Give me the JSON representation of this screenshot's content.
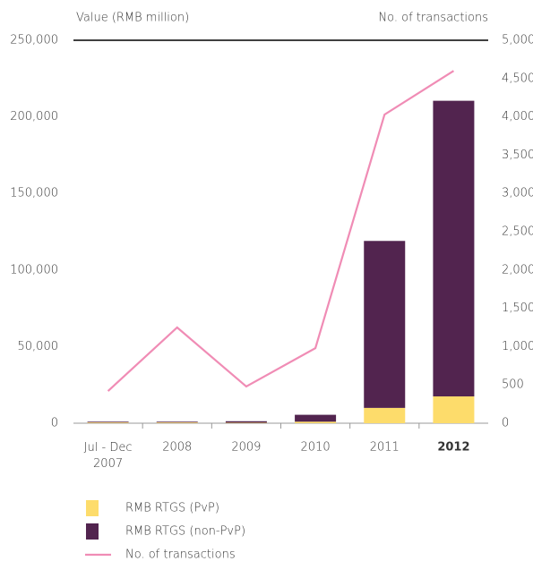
{
  "chart_data": {
    "type": "bar_line",
    "y_label": "Value (RMB million)",
    "y2_label": "No. of transactions",
    "categories": [
      "Jul - Dec\n2007",
      "2008",
      "2009",
      "2010",
      "2011",
      "2012"
    ],
    "series": [
      {
        "name": "RMB RTGS (PvP)",
        "color": "#fddc6b",
        "type": "bar",
        "values": [
          500,
          500,
          300,
          1000,
          10000,
          17500
        ]
      },
      {
        "name": "RMB RTGS (non-PvP)",
        "color": "#52244f",
        "type": "bar",
        "values": [
          500,
          500,
          1000,
          4500,
          109000,
          193000
        ]
      },
      {
        "name": "No. of transactions",
        "color": "#f08cb5",
        "type": "line",
        "axis": "y2",
        "values": [
          420,
          1250,
          480,
          980,
          4030,
          4600
        ]
      }
    ],
    "stacked": true,
    "ylim": [
      0,
      250000
    ],
    "yticks": [
      0,
      {
        "value": 50000,
        "label": "50,000"
      },
      {
        "value": 100000,
        "label": "100,000"
      },
      {
        "value": 150000,
        "label": "150,000"
      },
      {
        "value": 200000,
        "label": "200,000"
      },
      {
        "value": 250000,
        "label": "250,000"
      }
    ],
    "y2lim": [
      0,
      5000
    ],
    "y2ticks": [
      0,
      500,
      {
        "value": 1000,
        "label": "1,000"
      },
      {
        "value": 1500,
        "label": "1,500"
      },
      {
        "value": 2000,
        "label": "2,000"
      },
      {
        "value": 2500,
        "label": "2,500"
      },
      {
        "value": 3000,
        "label": "3,000"
      },
      {
        "value": 3500,
        "label": "3,500"
      },
      {
        "value": 4000,
        "label": "4,000"
      },
      {
        "value": 4500,
        "label": "4,500"
      },
      {
        "value": 5000,
        "label": "5,000"
      }
    ]
  }
}
